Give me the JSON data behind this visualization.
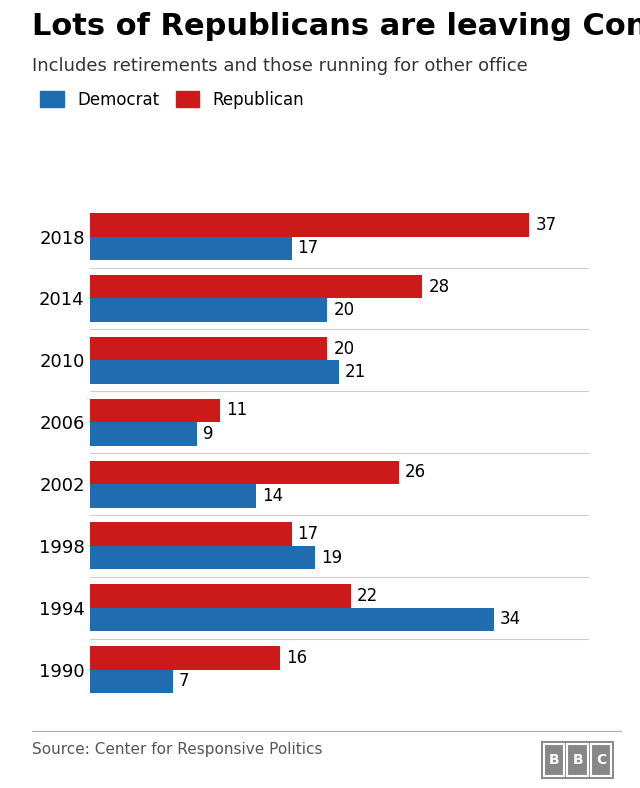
{
  "title": "Lots of Republicans are leaving Congress",
  "subtitle": "Includes retirements and those running for other office",
  "years": [
    "1990",
    "1994",
    "1998",
    "2002",
    "2006",
    "2010",
    "2014",
    "2018"
  ],
  "democrat_values": [
    7,
    34,
    19,
    14,
    9,
    21,
    20,
    17
  ],
  "republican_values": [
    16,
    22,
    17,
    26,
    11,
    20,
    28,
    37
  ],
  "democrat_color": "#1f6cb0",
  "republican_color": "#cc1a1a",
  "bar_height": 0.38,
  "xlim": [
    0,
    42
  ],
  "source_text": "Source: Center for Responsive Politics",
  "bbc_text": "BBC",
  "legend_democrat": "Democrat",
  "legend_republican": "Republican",
  "background_color": "#ffffff",
  "title_fontsize": 22,
  "subtitle_fontsize": 13,
  "label_fontsize": 12,
  "tick_fontsize": 13,
  "source_fontsize": 11
}
